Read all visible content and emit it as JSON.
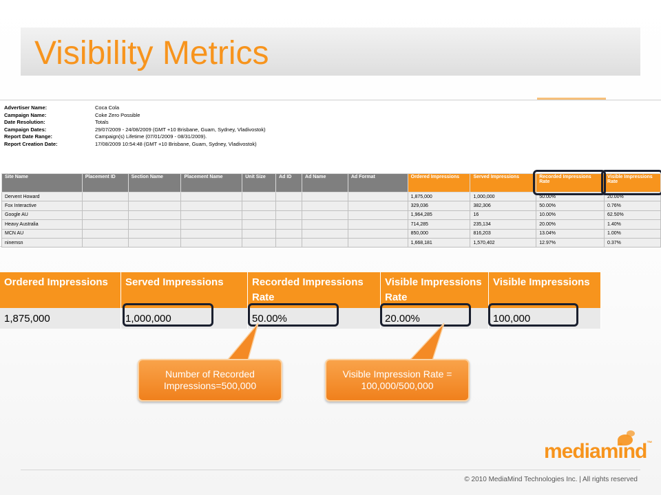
{
  "slide": {
    "title": "Visibility Metrics",
    "copyright": "© 2010 MediaMind Technologies Inc. | All rights reserved",
    "logo": "mediamind",
    "logo_tm": "™"
  },
  "report": {
    "meta": [
      {
        "label": "Advertiser Name:",
        "value": "Coca Cola"
      },
      {
        "label": "Campaign Name:",
        "value": "Coke Zero Possible"
      },
      {
        "label": "Date Resolution:",
        "value": "Totals"
      },
      {
        "label": "Campaign Dates:",
        "value": "29/07/2009 - 24/08/2009 (GMT +10 Brisbane, Guam, Sydney, Vladivostok)"
      },
      {
        "label": "Report Date Range:",
        "value": "Campaign(s) Lifetime (07/01/2009 - 08/31/2009)."
      },
      {
        "label": "Report Creation Date:",
        "value": "17/08/2009 10:54:48 (GMT +10 Brisbane, Guam, Sydney, Vladivostok)"
      }
    ],
    "columns": [
      "Site Name",
      "Placement ID",
      "Section Name",
      "Placement Name",
      "Unit Size",
      "Ad ID",
      "Ad Name",
      "Ad Format",
      "Ordered Impressions",
      "Served Impressions",
      "Recorded Impressions Rate",
      "Visible Impressions Rate"
    ],
    "rows": [
      [
        "Dervent Howard",
        "",
        "",
        "",
        "",
        "",
        "",
        "",
        "1,875,000",
        "1,000,000",
        "50.00%",
        "20.00%"
      ],
      [
        "Fox Interactive",
        "",
        "",
        "",
        "",
        "",
        "",
        "",
        "329,036",
        "382,306",
        "50.00%",
        "0.76%"
      ],
      [
        "Google AU",
        "",
        "",
        "",
        "",
        "",
        "",
        "",
        "1,964,285",
        "16",
        "10.00%",
        "62.50%"
      ],
      [
        "Heavy Australia",
        "",
        "",
        "",
        "",
        "",
        "",
        "",
        "714,285",
        "235,134",
        "20.00%",
        "1.40%"
      ],
      [
        "MCN AU",
        "",
        "",
        "",
        "",
        "",
        "",
        "",
        "850,000",
        "816,203",
        "13.04%",
        "1.00%"
      ],
      [
        "ninemsn",
        "",
        "",
        "",
        "",
        "",
        "",
        "",
        "1,668,181",
        "1,570,402",
        "12.97%",
        "0.37%"
      ]
    ]
  },
  "zoom": {
    "columns": [
      "Ordered Impressions",
      "Served Impressions",
      "Recorded Impressions Rate",
      "Visible Impressions Rate",
      "Visible Impressions"
    ],
    "values": [
      "1,875,000",
      "1,000,000",
      "50.00%",
      "20.00%",
      "100,000"
    ]
  },
  "callouts": [
    {
      "text": "Number of Recorded Impressions=500,000"
    },
    {
      "text": "Visible Impression Rate = 100,000/500,000"
    }
  ],
  "colors": {
    "accent": "#f7941d",
    "header_gray": "#7f7f7f",
    "outline": "#1a1f2e"
  }
}
